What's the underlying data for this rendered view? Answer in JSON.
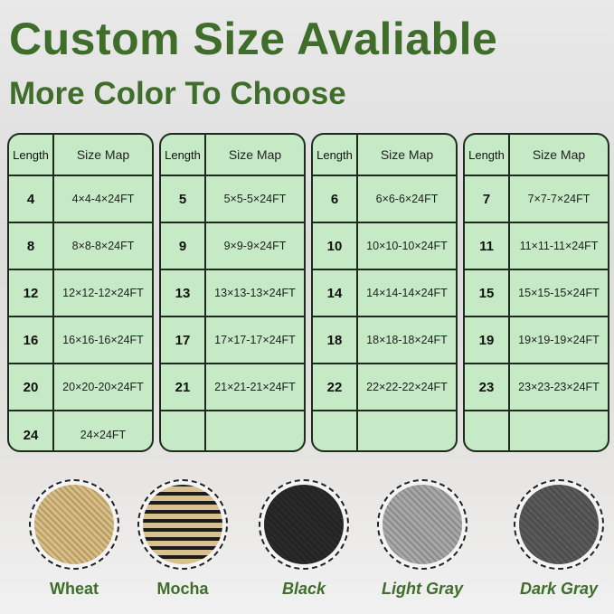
{
  "title": "Custom Size Avaliable",
  "subtitle": "More Color To Choose",
  "table_header": {
    "length": "Length",
    "size_map": "Size Map"
  },
  "tables": [
    [
      {
        "l": "4",
        "s": "4×4-4×24FT"
      },
      {
        "l": "8",
        "s": "8×8-8×24FT"
      },
      {
        "l": "12",
        "s": "12×12-12×24FT"
      },
      {
        "l": "16",
        "s": "16×16-16×24FT"
      },
      {
        "l": "20",
        "s": "20×20-20×24FT"
      },
      {
        "l": "24",
        "s": "24×24FT"
      }
    ],
    [
      {
        "l": "5",
        "s": "5×5-5×24FT"
      },
      {
        "l": "9",
        "s": "9×9-9×24FT"
      },
      {
        "l": "13",
        "s": "13×13-13×24FT"
      },
      {
        "l": "17",
        "s": "17×17-17×24FT"
      },
      {
        "l": "21",
        "s": "21×21-21×24FT"
      },
      {
        "l": "",
        "s": ""
      }
    ],
    [
      {
        "l": "6",
        "s": "6×6-6×24FT"
      },
      {
        "l": "10",
        "s": "10×10-10×24FT"
      },
      {
        "l": "14",
        "s": "14×14-14×24FT"
      },
      {
        "l": "18",
        "s": "18×18-18×24FT"
      },
      {
        "l": "22",
        "s": "22×22-22×24FT"
      },
      {
        "l": "",
        "s": ""
      }
    ],
    [
      {
        "l": "7",
        "s": "7×7-7×24FT"
      },
      {
        "l": "11",
        "s": "11×11-11×24FT"
      },
      {
        "l": "15",
        "s": "15×15-15×24FT"
      },
      {
        "l": "19",
        "s": "19×19-19×24FT"
      },
      {
        "l": "23",
        "s": "23×23-23×24FT"
      },
      {
        "l": "",
        "s": ""
      }
    ]
  ],
  "colors": [
    {
      "name": "Wheat",
      "hex": "#d9bd82",
      "italic": false
    },
    {
      "name": "Mocha",
      "hex": "#8a7656",
      "italic": false
    },
    {
      "name": "Black",
      "hex": "#2a2a2a",
      "italic": true
    },
    {
      "name": "Light Gray",
      "hex": "#a8a8a8",
      "italic": true
    },
    {
      "name": "Dark Gray",
      "hex": "#5a5a5a",
      "italic": true
    }
  ]
}
